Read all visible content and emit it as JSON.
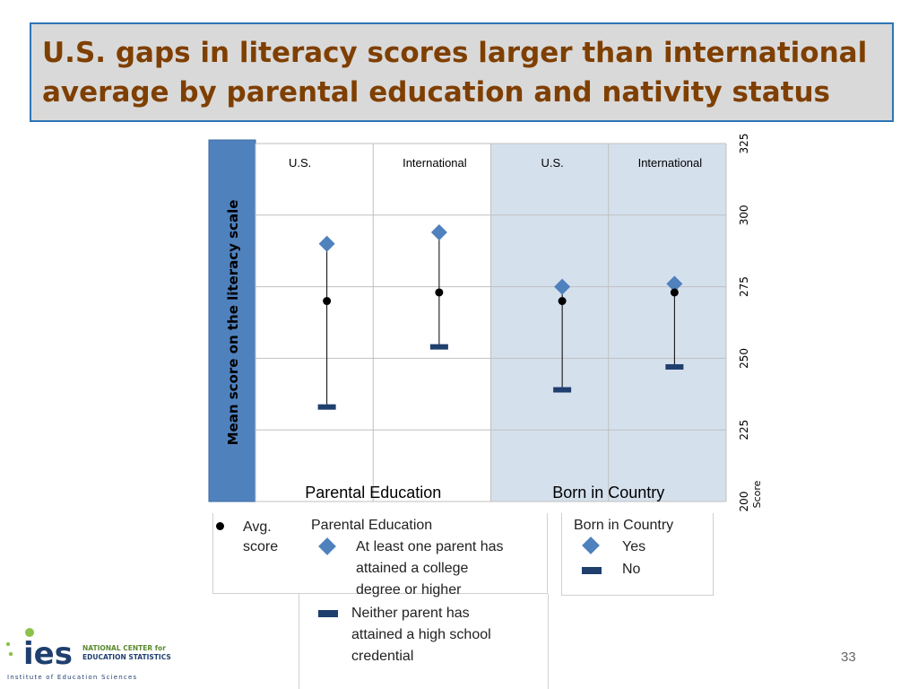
{
  "title": "U.S. gaps in literacy scores larger than international average by parental education and nativity status",
  "title_lines": [
    "U.S. gaps in literacy scores larger than international",
    "average by parental education and nativity status"
  ],
  "page_number": "33",
  "colors": {
    "title_text": "#7f3f00",
    "title_bg": "#d9d9d9",
    "border": "#2e75b6",
    "ylabel_bar": "#4f81bd",
    "diamond": "#4f81bd",
    "dash": "#1f3f6e",
    "shade": "#d5e0ed"
  },
  "chart_data": {
    "type": "scatter",
    "ylabel": "Mean score on the literacy scale",
    "y_axis_title": "Score",
    "ylim": [
      200,
      325
    ],
    "yticks": [
      200,
      225,
      250,
      275,
      300,
      325
    ],
    "grid": true,
    "groups": [
      {
        "label": "Parental Education",
        "shaded": false
      },
      {
        "label": "Born in Country",
        "shaded": true
      }
    ],
    "categories": [
      {
        "label": "U.S.",
        "group": 0
      },
      {
        "label": "International",
        "group": 0
      },
      {
        "label": "U.S.",
        "group": 1
      },
      {
        "label": "International",
        "group": 1
      }
    ],
    "series": [
      {
        "name": "Avg. score",
        "marker": "circle",
        "values": [
          270,
          273,
          270,
          273
        ]
      },
      {
        "name": "At least one parent has attained a college degree or higher / Yes",
        "marker": "diamond",
        "values": [
          290,
          294,
          275,
          276
        ]
      },
      {
        "name": "Neither parent has attained a high school credential / No",
        "marker": "dash",
        "values": [
          233,
          254,
          239,
          247
        ]
      }
    ]
  },
  "legend": {
    "avg_label_1": "Avg.",
    "avg_label_2": "score",
    "parental_title": "Parental Education",
    "parental_yes_1": "At least one parent has",
    "parental_yes_2": "attained a college",
    "parental_yes_3": "degree or higher",
    "parental_no_1": "Neither parent has",
    "parental_no_2": "attained a high school",
    "parental_no_3": "credential",
    "born_title": "Born in Country",
    "born_yes": "Yes",
    "born_no": "No"
  },
  "logo": {
    "text_big": "ies",
    "text_line1": "NATIONAL CENTER for",
    "text_line2": "EDUCATION STATISTICS",
    "tagline": "Institute of Education Sciences"
  }
}
